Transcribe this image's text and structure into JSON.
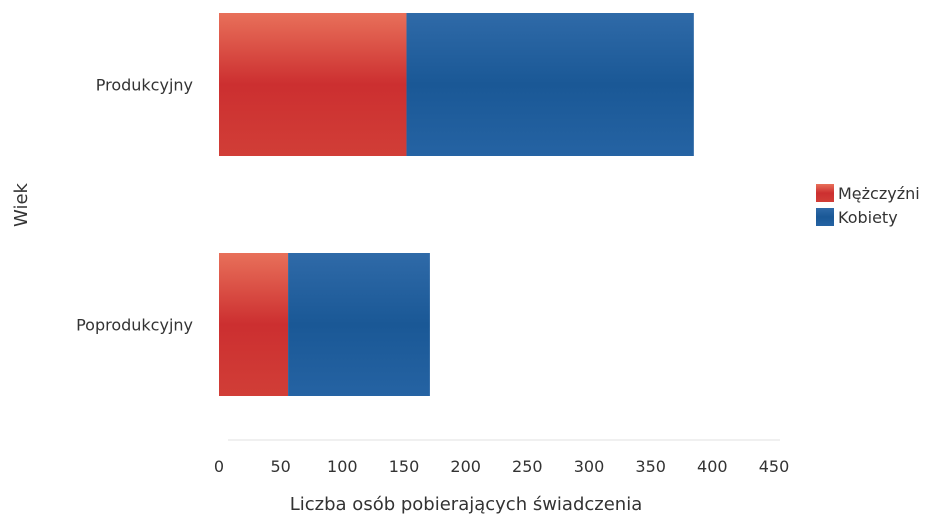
{
  "chart_data": {
    "type": "bar",
    "orientation": "horizontal",
    "stacked": true,
    "title": "",
    "xlabel": "Liczba osób pobierających świadczenia",
    "ylabel": "Wiek",
    "categories": [
      "Produkcyjny",
      "Poprodukcyjny"
    ],
    "series": [
      {
        "name": "Mężczyźni",
        "values": [
          152,
          56
        ],
        "color": "#d23a3a"
      },
      {
        "name": "Kobiety",
        "values": [
          233,
          115
        ],
        "color": "#1f5f9e"
      }
    ],
    "xlim": [
      0,
      450
    ],
    "xticks": [
      "0",
      "50",
      "100",
      "150",
      "200",
      "250",
      "300",
      "350",
      "400",
      "450"
    ],
    "legend_position": "right",
    "grid": false
  }
}
